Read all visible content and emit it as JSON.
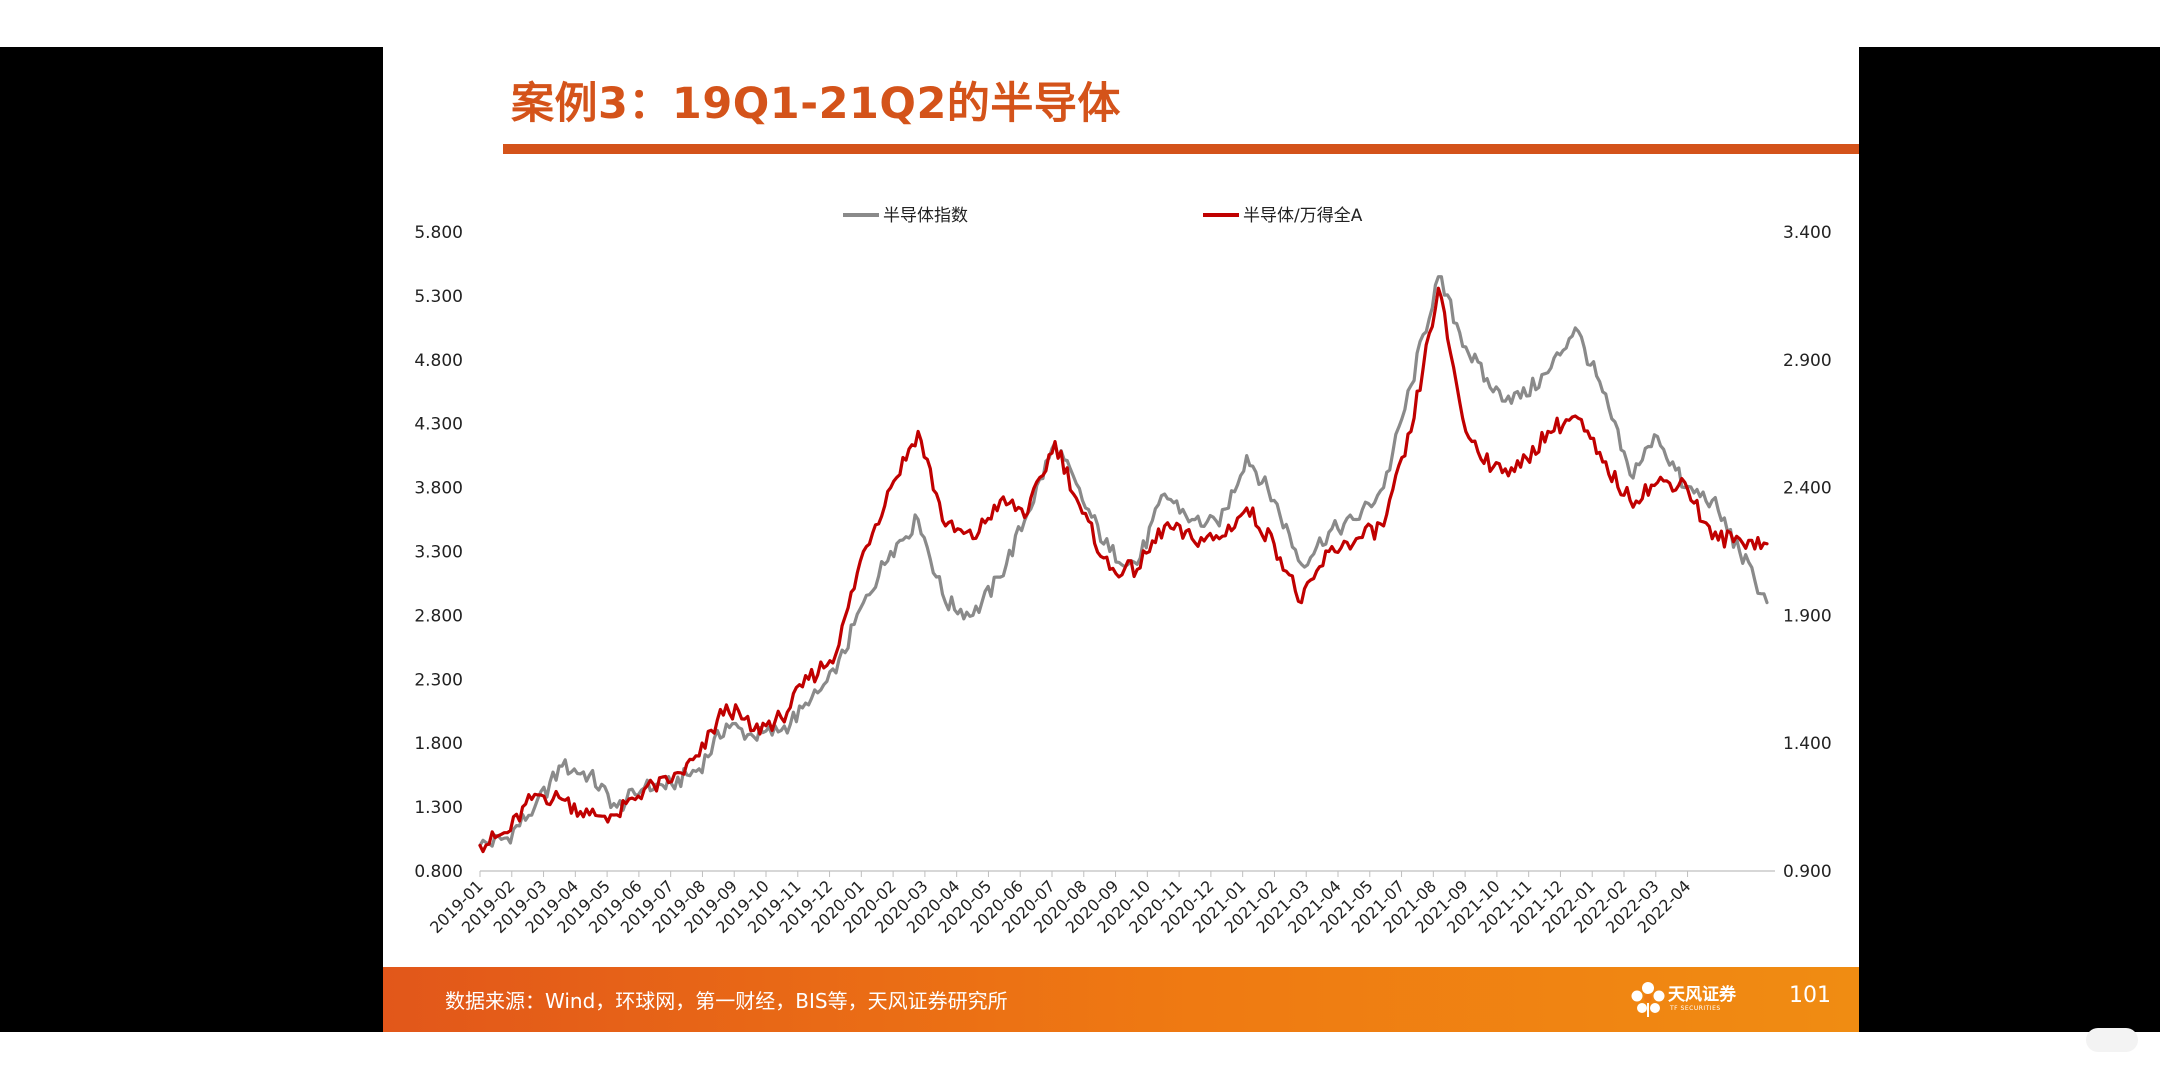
{
  "slide": {
    "title": "案例3：19Q1-21Q2的半导体",
    "page_number": "101",
    "footer_source": "数据来源：Wind，环球网，第一财经，BIS等，天风证券研究所",
    "logo_name": "天风证券",
    "logo_sub": "TF SECURITIES"
  },
  "colors": {
    "accent": "#d4531a",
    "footer": "#ef7a12",
    "series_gray": "#8a8a8a",
    "series_red": "#c00000"
  },
  "chart_data": {
    "type": "line",
    "title": "",
    "legend_position": "top-center",
    "grid": false,
    "y_left": {
      "range": [
        0.8,
        5.8
      ],
      "ticks": [
        "0.800",
        "1.300",
        "1.800",
        "2.300",
        "2.800",
        "3.300",
        "3.800",
        "4.300",
        "4.800",
        "5.300",
        "5.800"
      ]
    },
    "y_right": {
      "range": [
        0.9,
        3.4
      ],
      "ticks": [
        "0.900",
        "1.400",
        "1.900",
        "2.400",
        "2.900",
        "3.400"
      ]
    },
    "x_tick_labels": [
      "2019-01",
      "2019-02",
      "2019-03",
      "2019-04",
      "2019-05",
      "2019-06",
      "2019-07",
      "2019-08",
      "2019-09",
      "2019-10",
      "2019-11",
      "2019-12",
      "2020-01",
      "2020-02",
      "2020-03",
      "2020-04",
      "2020-05",
      "2020-06",
      "2020-07",
      "2020-08",
      "2020-09",
      "2020-10",
      "2020-11",
      "2020-12",
      "2021-01",
      "2021-02",
      "2021-03",
      "2021-04",
      "2021-05",
      "2021-07",
      "2021-08",
      "2021-09",
      "2021-10",
      "2021-11",
      "2021-12",
      "2022-01",
      "2022-02",
      "2022-03",
      "2022-04"
    ],
    "x": [
      "2019-01",
      "2019-02",
      "2019-03",
      "2019-03b",
      "2019-04",
      "2019-05",
      "2019-06",
      "2019-07",
      "2019-08",
      "2019-09",
      "2019-10",
      "2019-11",
      "2019-12",
      "2020-01",
      "2020-02",
      "2020-02b",
      "2020-03",
      "2020-04",
      "2020-05",
      "2020-06",
      "2020-07",
      "2020-07b",
      "2020-08",
      "2020-09",
      "2020-10",
      "2020-11",
      "2020-11b",
      "2020-12",
      "2021-01",
      "2021-02",
      "2021-03",
      "2021-04",
      "2021-05",
      "2021-07",
      "2021-08",
      "2021-09",
      "2021-09b",
      "2021-10",
      "2021-11",
      "2021-12",
      "2022-01",
      "2022-02",
      "2022-03",
      "2022-03b",
      "2022-04",
      "2022-04b",
      "2022-05",
      "2022-05b"
    ],
    "series": [
      {
        "name": "半导体指数",
        "axis": "left",
        "color": "#8a8a8a",
        "values": [
          1.0,
          1.06,
          1.3,
          1.62,
          1.55,
          1.3,
          1.45,
          1.48,
          1.6,
          1.95,
          1.85,
          1.9,
          2.1,
          2.35,
          2.9,
          3.3,
          3.55,
          2.9,
          2.8,
          3.1,
          3.6,
          4.15,
          3.7,
          3.3,
          3.2,
          3.75,
          3.55,
          3.5,
          4.05,
          3.7,
          3.2,
          3.45,
          3.55,
          3.8,
          4.6,
          5.45,
          4.9,
          4.55,
          4.5,
          4.7,
          5.05,
          4.55,
          3.9,
          4.2,
          3.8,
          3.7,
          3.3,
          2.9
        ]
      },
      {
        "name": "半导体/万得全A",
        "axis": "right",
        "color": "#c00000",
        "values": [
          1.0,
          1.05,
          1.2,
          1.18,
          1.12,
          1.12,
          1.22,
          1.25,
          1.35,
          1.55,
          1.45,
          1.5,
          1.65,
          1.75,
          2.15,
          2.4,
          2.62,
          2.25,
          2.2,
          2.35,
          2.3,
          2.58,
          2.3,
          2.08,
          2.08,
          2.25,
          2.2,
          2.2,
          2.32,
          2.18,
          1.95,
          2.15,
          2.2,
          2.25,
          2.62,
          3.18,
          2.62,
          2.48,
          2.48,
          2.62,
          2.68,
          2.5,
          2.35,
          2.42,
          2.42,
          2.2,
          2.2,
          2.18
        ]
      }
    ]
  }
}
